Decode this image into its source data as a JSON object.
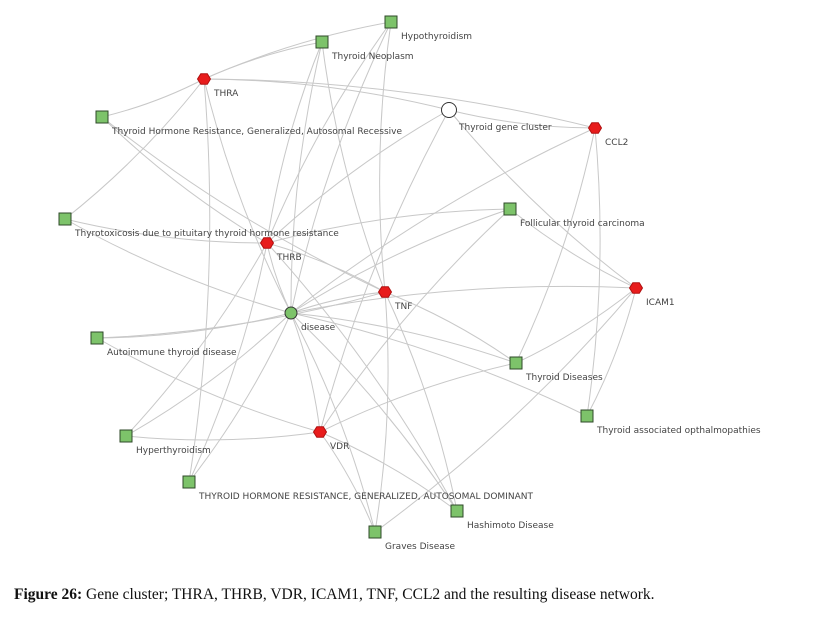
{
  "colors": {
    "gene": "#e81c1c",
    "disease_term": "#7dc36a",
    "cluster": "#ffffff",
    "edge": "#c8c8c8"
  },
  "nodes": [
    {
      "id": "hypo",
      "label": "Hypothyroidism",
      "kind": "disease_term"
    },
    {
      "id": "neo",
      "label": "Thyroid Neoplasm",
      "kind": "disease_term"
    },
    {
      "id": "thra",
      "label": "THRA",
      "kind": "gene"
    },
    {
      "id": "rec",
      "label": "Thyroid Hormone Resistance, Generalized, Autosomal Recessive",
      "kind": "disease_term"
    },
    {
      "id": "cluster",
      "label": "Thyroid gene cluster",
      "kind": "cluster"
    },
    {
      "id": "ccl2",
      "label": "CCL2",
      "kind": "gene"
    },
    {
      "id": "tox",
      "label": "Thyrotoxicosis due to pituitary thyroid hormone resistance",
      "kind": "disease_term"
    },
    {
      "id": "fol",
      "label": "Follicular thyroid carcinoma",
      "kind": "disease_term"
    },
    {
      "id": "thrb",
      "label": "THRB",
      "kind": "gene"
    },
    {
      "id": "icam1",
      "label": "ICAM1",
      "kind": "gene"
    },
    {
      "id": "tnf",
      "label": "TNF",
      "kind": "gene"
    },
    {
      "id": "disease",
      "label": "disease",
      "kind": "root"
    },
    {
      "id": "auto",
      "label": "Autoimmune thyroid disease",
      "kind": "disease_term"
    },
    {
      "id": "tdis",
      "label": "Thyroid Diseases",
      "kind": "disease_term"
    },
    {
      "id": "tao",
      "label": "Thyroid associated opthalmopathies",
      "kind": "disease_term"
    },
    {
      "id": "hyper",
      "label": "Hyperthyroidism",
      "kind": "disease_term"
    },
    {
      "id": "vdr",
      "label": "VDR",
      "kind": "gene"
    },
    {
      "id": "dom",
      "label": "THYROID HORMONE RESISTANCE, GENERALIZED, AUTOSOMAL DOMINANT",
      "kind": "disease_term"
    },
    {
      "id": "hash",
      "label": "Hashimoto Disease",
      "kind": "disease_term"
    },
    {
      "id": "graves",
      "label": "Graves Disease",
      "kind": "disease_term"
    }
  ],
  "edges": [
    [
      "thra",
      "hypo"
    ],
    [
      "thra",
      "neo"
    ],
    [
      "thra",
      "rec"
    ],
    [
      "thra",
      "tox"
    ],
    [
      "thra",
      "cluster"
    ],
    [
      "thra",
      "dom"
    ],
    [
      "thra",
      "ccl2"
    ],
    [
      "thrb",
      "neo"
    ],
    [
      "thrb",
      "hypo"
    ],
    [
      "thrb",
      "rec"
    ],
    [
      "thrb",
      "tox"
    ],
    [
      "thrb",
      "fol"
    ],
    [
      "thrb",
      "cluster"
    ],
    [
      "thrb",
      "hyper"
    ],
    [
      "thrb",
      "dom"
    ],
    [
      "thrb",
      "tnf"
    ],
    [
      "thrb",
      "hash"
    ],
    [
      "tnf",
      "neo"
    ],
    [
      "tnf",
      "hypo"
    ],
    [
      "tnf",
      "tdis"
    ],
    [
      "tnf",
      "hash"
    ],
    [
      "tnf",
      "graves"
    ],
    [
      "tnf",
      "auto"
    ],
    [
      "tnf",
      "rec"
    ],
    [
      "vdr",
      "cluster"
    ],
    [
      "vdr",
      "auto"
    ],
    [
      "vdr",
      "hyper"
    ],
    [
      "vdr",
      "graves"
    ],
    [
      "vdr",
      "hash"
    ],
    [
      "vdr",
      "tdis"
    ],
    [
      "vdr",
      "fol"
    ],
    [
      "icam1",
      "cluster"
    ],
    [
      "icam1",
      "fol"
    ],
    [
      "icam1",
      "tdis"
    ],
    [
      "icam1",
      "tao"
    ],
    [
      "icam1",
      "graves"
    ],
    [
      "ccl2",
      "cluster"
    ],
    [
      "ccl2",
      "tdis"
    ],
    [
      "ccl2",
      "tao"
    ],
    [
      "disease",
      "thra"
    ],
    [
      "disease",
      "thrb"
    ],
    [
      "disease",
      "tnf"
    ],
    [
      "disease",
      "vdr"
    ],
    [
      "disease",
      "icam1"
    ],
    [
      "disease",
      "ccl2"
    ],
    [
      "disease",
      "auto"
    ],
    [
      "disease",
      "hyper"
    ],
    [
      "disease",
      "dom"
    ],
    [
      "disease",
      "graves"
    ],
    [
      "disease",
      "tdis"
    ],
    [
      "disease",
      "tao"
    ],
    [
      "disease",
      "fol"
    ],
    [
      "disease",
      "tox"
    ],
    [
      "disease",
      "neo"
    ],
    [
      "disease",
      "hypo"
    ],
    [
      "disease",
      "hash"
    ]
  ],
  "caption": {
    "label": "Figure 26:",
    "text": " Gene cluster; THRA, THRB, VDR, ICAM1, TNF, CCL2 and the resulting disease network."
  }
}
